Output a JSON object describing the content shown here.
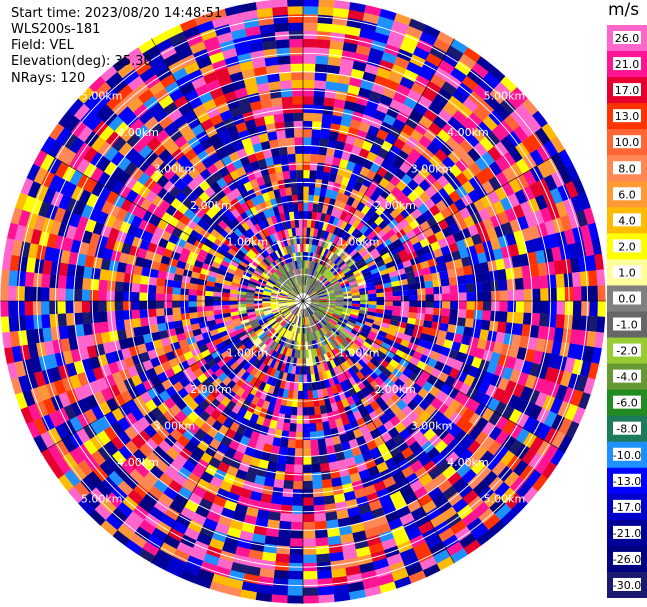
{
  "header": {
    "start_time": "Start time: 2023/08/20 14:48:51",
    "instrument": "WLS200s-181",
    "field": "Field: VEL",
    "elevation": "Elevation(deg): 35.30",
    "nrays": "NRays: 120"
  },
  "colorbar": {
    "unit": "m/s",
    "ticks": [
      "26.0",
      "21.0",
      "17.0",
      "13.0",
      "10.0",
      "8.0",
      "6.0",
      "4.0",
      "2.0",
      "1.0",
      "0.0",
      "-1.0",
      "-2.0",
      "-4.0",
      "-6.0",
      "-8.0",
      "-10.0",
      "-13.0",
      "-17.0",
      "-21.0",
      "-26.0",
      "-30.0"
    ],
    "colors": [
      "#ff66cc",
      "#ff1493",
      "#e6002e",
      "#ff3300",
      "#ff6633",
      "#ff8855",
      "#ff9933",
      "#ffbb00",
      "#ffff00",
      "#ffff99",
      "#808080",
      "#666666",
      "#99cc33",
      "#669933",
      "#228b22",
      "#1e7b5a",
      "#1e90ff",
      "#0000ff",
      "#0000cc",
      "#000099",
      "#000080",
      "#191970"
    ]
  },
  "chart_data": {
    "type": "ppi",
    "field": "VEL",
    "nrays": 120,
    "range_rings_km": [
      "1.00km",
      "2.00km",
      "3.00km",
      "4.00km",
      "5.00km"
    ],
    "vmin": -30.0,
    "vmax": 26.0
  }
}
